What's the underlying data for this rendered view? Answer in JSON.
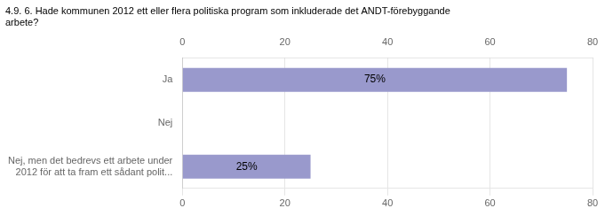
{
  "chart_data": {
    "type": "bar",
    "orientation": "horizontal",
    "title": "4.9. 6. Hade kommunen 2012 ett eller flera politiska program som inkluderade det ANDT-förebyggande\narbete?",
    "categories": [
      "Nej, men det bedrevs ett arbete under\n2012 för att ta fram ett sådant polit...",
      "Nej",
      "Ja"
    ],
    "values": [
      25,
      0,
      75
    ],
    "value_labels": [
      "25%",
      null,
      "75%"
    ],
    "data_labels": true,
    "color": "#9999cc",
    "xlim": [
      0,
      80
    ],
    "xticks": [
      0,
      20,
      40,
      60,
      80
    ],
    "grid": true
  }
}
